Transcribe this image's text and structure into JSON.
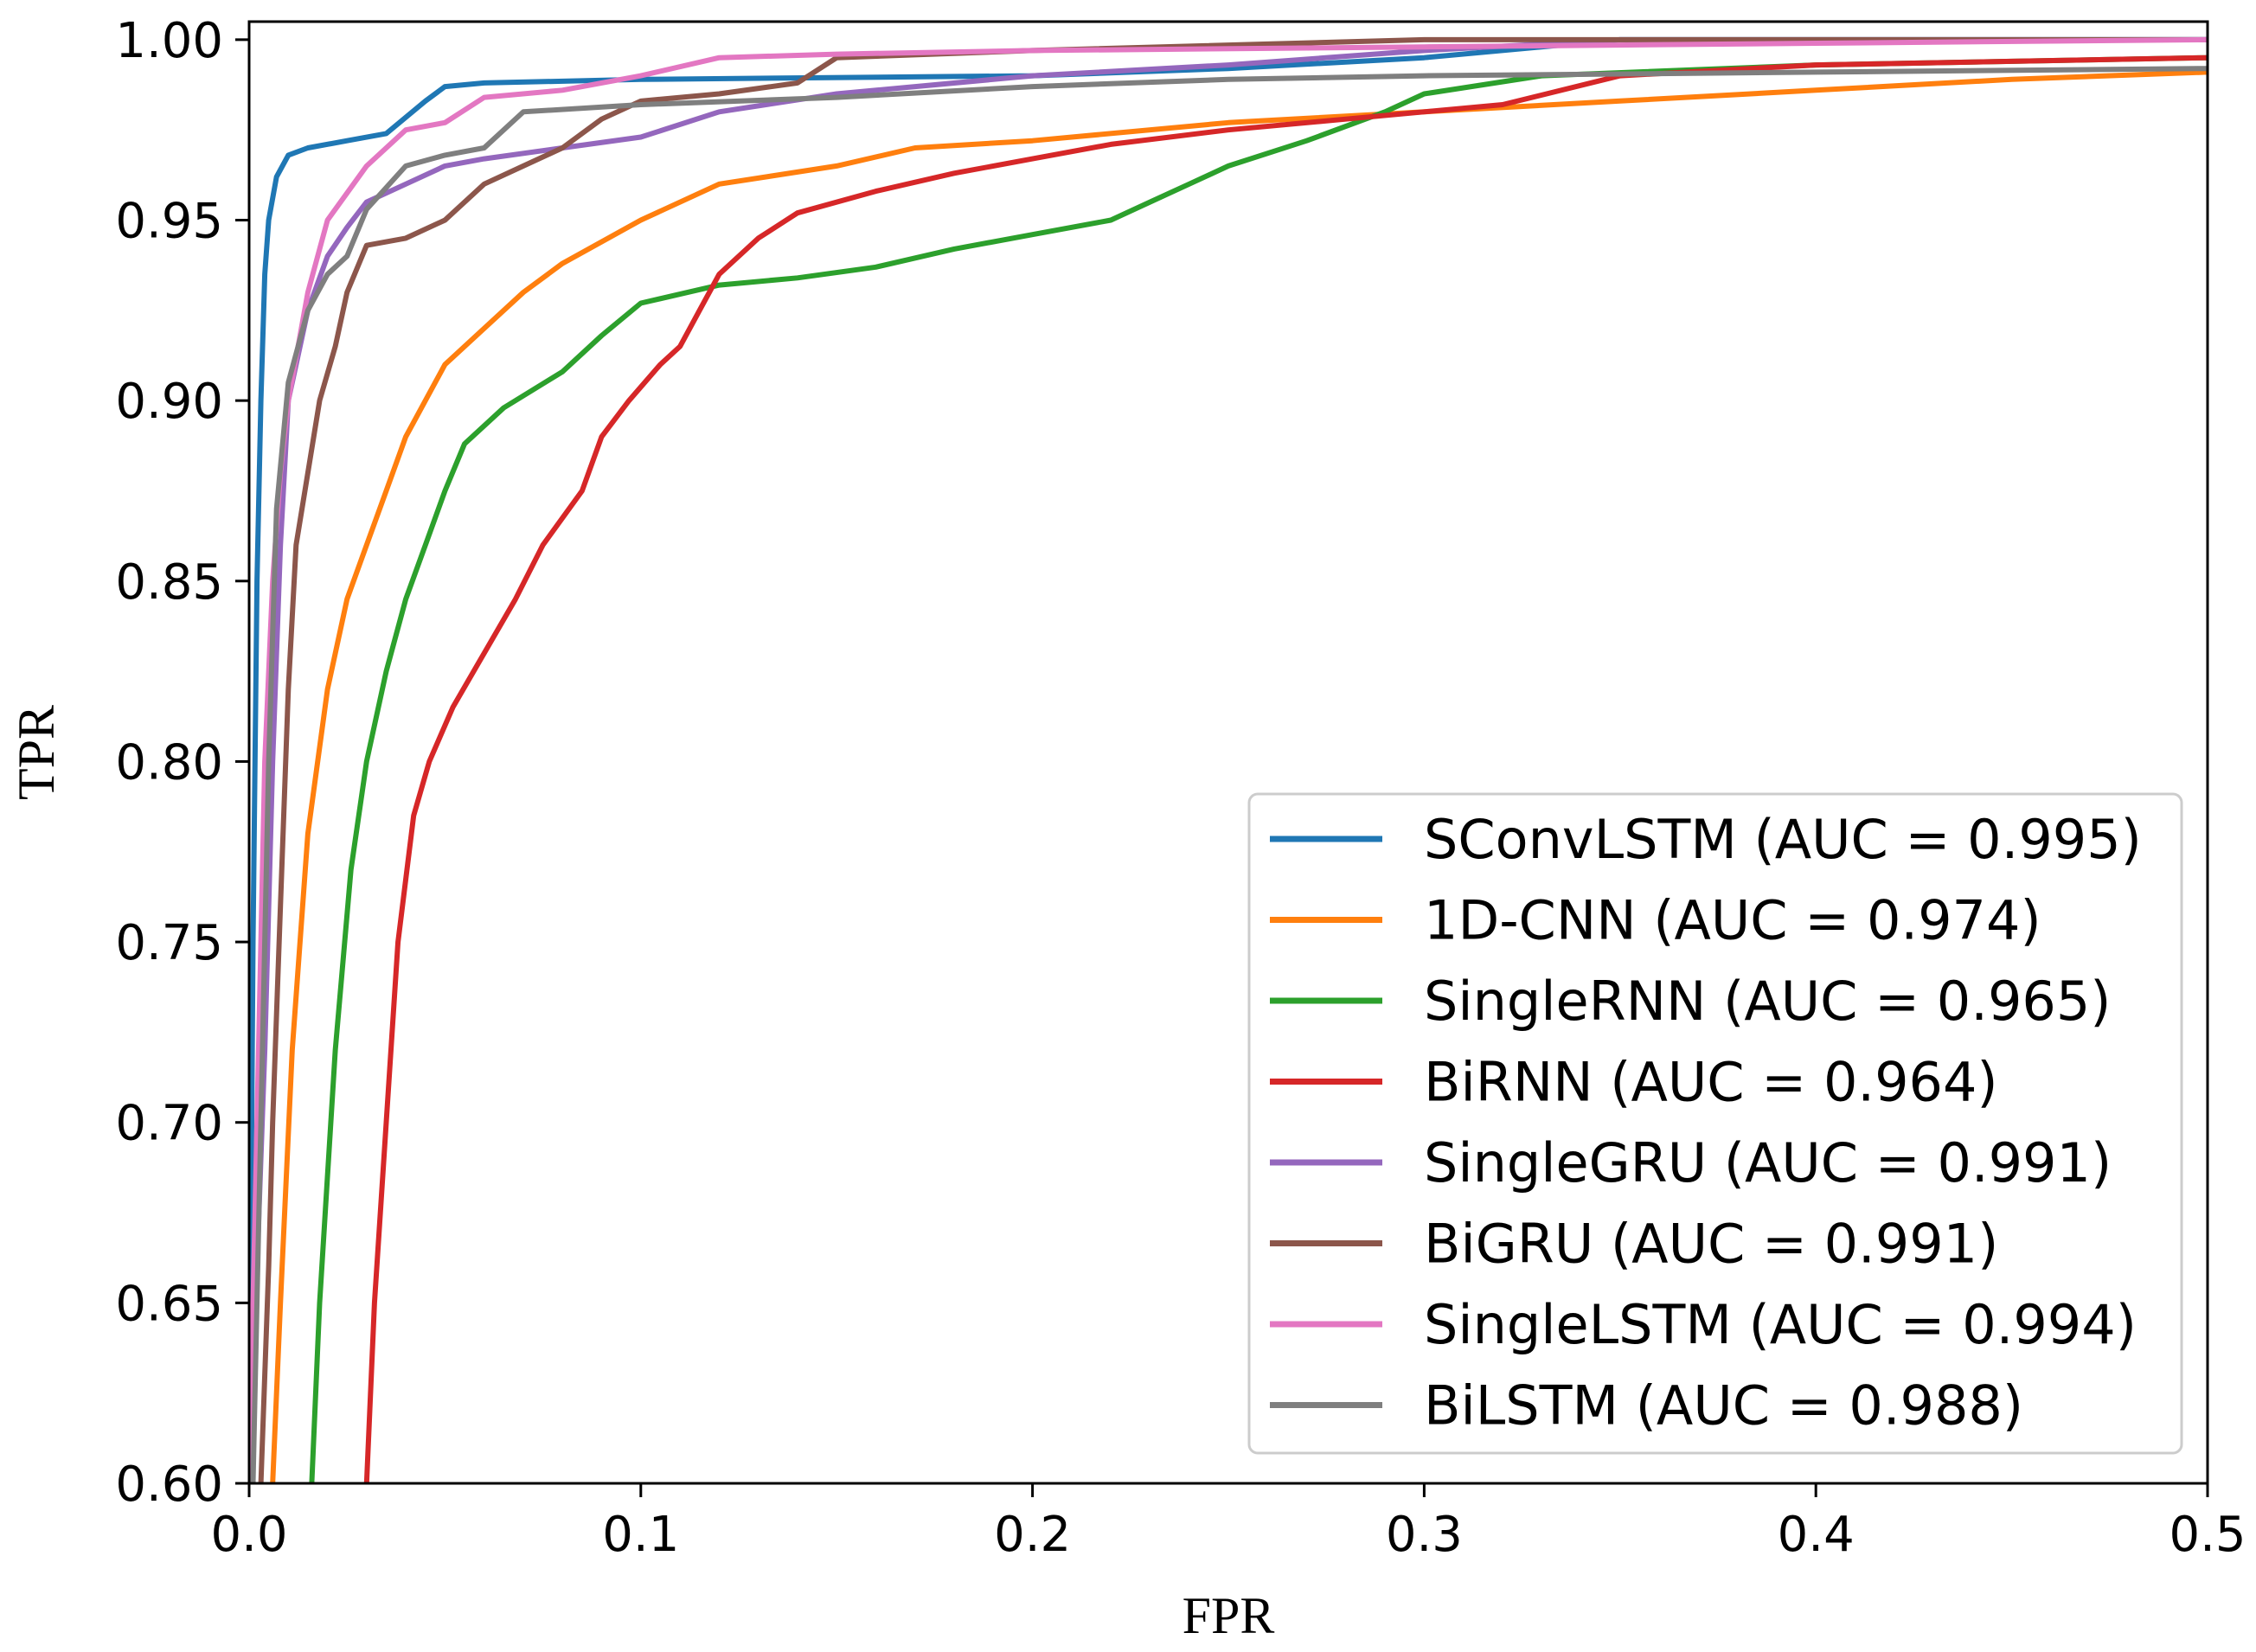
{
  "chart_data": {
    "type": "line",
    "title": "",
    "xlabel": "FPR",
    "ylabel": "TPR",
    "xlim": [
      0.0,
      0.5
    ],
    "ylim": [
      0.6,
      1.005
    ],
    "xticks": [
      "0.0",
      "0.1",
      "0.2",
      "0.3",
      "0.4",
      "0.5"
    ],
    "yticks": [
      "0.60",
      "0.65",
      "0.70",
      "0.75",
      "0.80",
      "0.85",
      "0.90",
      "0.95",
      "1.00"
    ],
    "grid": false,
    "legend_position": "lower-right",
    "series": [
      {
        "name": "SConvLSTM",
        "label": "SConvLSTM (AUC = 0.995)",
        "color": "#1f77b4",
        "points": [
          [
            0.0,
            0.6
          ],
          [
            0.001,
            0.75
          ],
          [
            0.002,
            0.85
          ],
          [
            0.003,
            0.9
          ],
          [
            0.004,
            0.935
          ],
          [
            0.005,
            0.95
          ],
          [
            0.007,
            0.962
          ],
          [
            0.01,
            0.968
          ],
          [
            0.015,
            0.97
          ],
          [
            0.025,
            0.972
          ],
          [
            0.035,
            0.974
          ],
          [
            0.045,
            0.983
          ],
          [
            0.05,
            0.987
          ],
          [
            0.06,
            0.988
          ],
          [
            0.1,
            0.989
          ],
          [
            0.2,
            0.99
          ],
          [
            0.25,
            0.992
          ],
          [
            0.3,
            0.995
          ],
          [
            0.35,
            1.0
          ],
          [
            0.5,
            1.0
          ]
        ]
      },
      {
        "name": "1D-CNN",
        "label": "1D-CNN (AUC = 0.974)",
        "color": "#ff7f0e",
        "points": [
          [
            0.006,
            0.6
          ],
          [
            0.008,
            0.65
          ],
          [
            0.011,
            0.72
          ],
          [
            0.015,
            0.78
          ],
          [
            0.02,
            0.82
          ],
          [
            0.025,
            0.845
          ],
          [
            0.03,
            0.86
          ],
          [
            0.035,
            0.875
          ],
          [
            0.04,
            0.89
          ],
          [
            0.045,
            0.9
          ],
          [
            0.05,
            0.91
          ],
          [
            0.06,
            0.92
          ],
          [
            0.07,
            0.93
          ],
          [
            0.08,
            0.938
          ],
          [
            0.1,
            0.95
          ],
          [
            0.12,
            0.96
          ],
          [
            0.15,
            0.965
          ],
          [
            0.17,
            0.97
          ],
          [
            0.2,
            0.972
          ],
          [
            0.25,
            0.977
          ],
          [
            0.3,
            0.98
          ],
          [
            0.35,
            0.983
          ],
          [
            0.4,
            0.986
          ],
          [
            0.45,
            0.989
          ],
          [
            0.5,
            0.991
          ]
        ]
      },
      {
        "name": "SingleRNN",
        "label": "SingleRNN (AUC = 0.965)",
        "color": "#2ca02c",
        "points": [
          [
            0.016,
            0.6
          ],
          [
            0.018,
            0.65
          ],
          [
            0.022,
            0.72
          ],
          [
            0.026,
            0.77
          ],
          [
            0.03,
            0.8
          ],
          [
            0.035,
            0.825
          ],
          [
            0.04,
            0.845
          ],
          [
            0.045,
            0.86
          ],
          [
            0.05,
            0.875
          ],
          [
            0.055,
            0.888
          ],
          [
            0.065,
            0.898
          ],
          [
            0.08,
            0.908
          ],
          [
            0.09,
            0.918
          ],
          [
            0.1,
            0.927
          ],
          [
            0.12,
            0.932
          ],
          [
            0.14,
            0.934
          ],
          [
            0.16,
            0.937
          ],
          [
            0.18,
            0.942
          ],
          [
            0.2,
            0.946
          ],
          [
            0.22,
            0.95
          ],
          [
            0.23,
            0.955
          ],
          [
            0.24,
            0.96
          ],
          [
            0.25,
            0.965
          ],
          [
            0.27,
            0.972
          ],
          [
            0.29,
            0.98
          ],
          [
            0.3,
            0.985
          ],
          [
            0.33,
            0.99
          ],
          [
            0.4,
            0.993
          ],
          [
            0.5,
            0.995
          ]
        ]
      },
      {
        "name": "BiRNN",
        "label": "BiRNN (AUC = 0.964)",
        "color": "#d62728",
        "points": [
          [
            0.03,
            0.6
          ],
          [
            0.032,
            0.65
          ],
          [
            0.035,
            0.7
          ],
          [
            0.038,
            0.75
          ],
          [
            0.042,
            0.785
          ],
          [
            0.046,
            0.8
          ],
          [
            0.052,
            0.815
          ],
          [
            0.06,
            0.83
          ],
          [
            0.068,
            0.845
          ],
          [
            0.075,
            0.86
          ],
          [
            0.085,
            0.875
          ],
          [
            0.09,
            0.89
          ],
          [
            0.097,
            0.9
          ],
          [
            0.105,
            0.91
          ],
          [
            0.11,
            0.915
          ],
          [
            0.115,
            0.925
          ],
          [
            0.12,
            0.935
          ],
          [
            0.13,
            0.945
          ],
          [
            0.14,
            0.952
          ],
          [
            0.16,
            0.958
          ],
          [
            0.18,
            0.963
          ],
          [
            0.2,
            0.967
          ],
          [
            0.22,
            0.971
          ],
          [
            0.25,
            0.975
          ],
          [
            0.28,
            0.978
          ],
          [
            0.3,
            0.98
          ],
          [
            0.32,
            0.982
          ],
          [
            0.35,
            0.99
          ],
          [
            0.4,
            0.993
          ],
          [
            0.45,
            0.994
          ],
          [
            0.5,
            0.995
          ]
        ]
      },
      {
        "name": "SingleGRU",
        "label": "SingleGRU (AUC = 0.991)",
        "color": "#9467bd",
        "points": [
          [
            0.0,
            0.6
          ],
          [
            0.002,
            0.66
          ],
          [
            0.004,
            0.72
          ],
          [
            0.006,
            0.8
          ],
          [
            0.008,
            0.86
          ],
          [
            0.01,
            0.9
          ],
          [
            0.015,
            0.925
          ],
          [
            0.02,
            0.94
          ],
          [
            0.025,
            0.948
          ],
          [
            0.03,
            0.955
          ],
          [
            0.04,
            0.96
          ],
          [
            0.05,
            0.965
          ],
          [
            0.06,
            0.967
          ],
          [
            0.08,
            0.97
          ],
          [
            0.1,
            0.973
          ],
          [
            0.12,
            0.98
          ],
          [
            0.15,
            0.985
          ],
          [
            0.2,
            0.99
          ],
          [
            0.25,
            0.993
          ],
          [
            0.3,
            0.997
          ],
          [
            0.35,
            1.0
          ],
          [
            0.5,
            1.0
          ]
        ]
      },
      {
        "name": "BiGRU",
        "label": "BiGRU (AUC = 0.991)",
        "color": "#8c564b",
        "points": [
          [
            0.003,
            0.6
          ],
          [
            0.005,
            0.66
          ],
          [
            0.006,
            0.7
          ],
          [
            0.008,
            0.76
          ],
          [
            0.01,
            0.82
          ],
          [
            0.012,
            0.86
          ],
          [
            0.015,
            0.88
          ],
          [
            0.018,
            0.9
          ],
          [
            0.022,
            0.915
          ],
          [
            0.025,
            0.93
          ],
          [
            0.03,
            0.943
          ],
          [
            0.04,
            0.945
          ],
          [
            0.05,
            0.95
          ],
          [
            0.06,
            0.96
          ],
          [
            0.07,
            0.965
          ],
          [
            0.08,
            0.97
          ],
          [
            0.09,
            0.978
          ],
          [
            0.1,
            0.983
          ],
          [
            0.12,
            0.985
          ],
          [
            0.14,
            0.988
          ],
          [
            0.15,
            0.995
          ],
          [
            0.2,
            0.997
          ],
          [
            0.3,
            1.0
          ],
          [
            0.5,
            1.0
          ]
        ]
      },
      {
        "name": "SingleLSTM",
        "label": "SingleLSTM (AUC = 0.994)",
        "color": "#e377c2",
        "points": [
          [
            0.0,
            0.6
          ],
          [
            0.002,
            0.7
          ],
          [
            0.004,
            0.8
          ],
          [
            0.006,
            0.85
          ],
          [
            0.008,
            0.88
          ],
          [
            0.01,
            0.9
          ],
          [
            0.015,
            0.93
          ],
          [
            0.02,
            0.95
          ],
          [
            0.03,
            0.965
          ],
          [
            0.04,
            0.975
          ],
          [
            0.05,
            0.977
          ],
          [
            0.06,
            0.984
          ],
          [
            0.08,
            0.986
          ],
          [
            0.1,
            0.99
          ],
          [
            0.12,
            0.995
          ],
          [
            0.15,
            0.996
          ],
          [
            0.2,
            0.997
          ],
          [
            0.3,
            0.998
          ],
          [
            0.4,
            0.999
          ],
          [
            0.5,
            1.0
          ]
        ]
      },
      {
        "name": "BiLSTM",
        "label": "BiLSTM (AUC = 0.988)",
        "color": "#7f7f7f",
        "points": [
          [
            0.001,
            0.6
          ],
          [
            0.003,
            0.7
          ],
          [
            0.005,
            0.8
          ],
          [
            0.007,
            0.87
          ],
          [
            0.01,
            0.905
          ],
          [
            0.015,
            0.925
          ],
          [
            0.02,
            0.935
          ],
          [
            0.025,
            0.94
          ],
          [
            0.03,
            0.953
          ],
          [
            0.04,
            0.965
          ],
          [
            0.05,
            0.968
          ],
          [
            0.06,
            0.97
          ],
          [
            0.07,
            0.98
          ],
          [
            0.1,
            0.982
          ],
          [
            0.15,
            0.984
          ],
          [
            0.2,
            0.987
          ],
          [
            0.25,
            0.989
          ],
          [
            0.3,
            0.99
          ],
          [
            0.4,
            0.991
          ],
          [
            0.5,
            0.992
          ]
        ]
      }
    ]
  }
}
